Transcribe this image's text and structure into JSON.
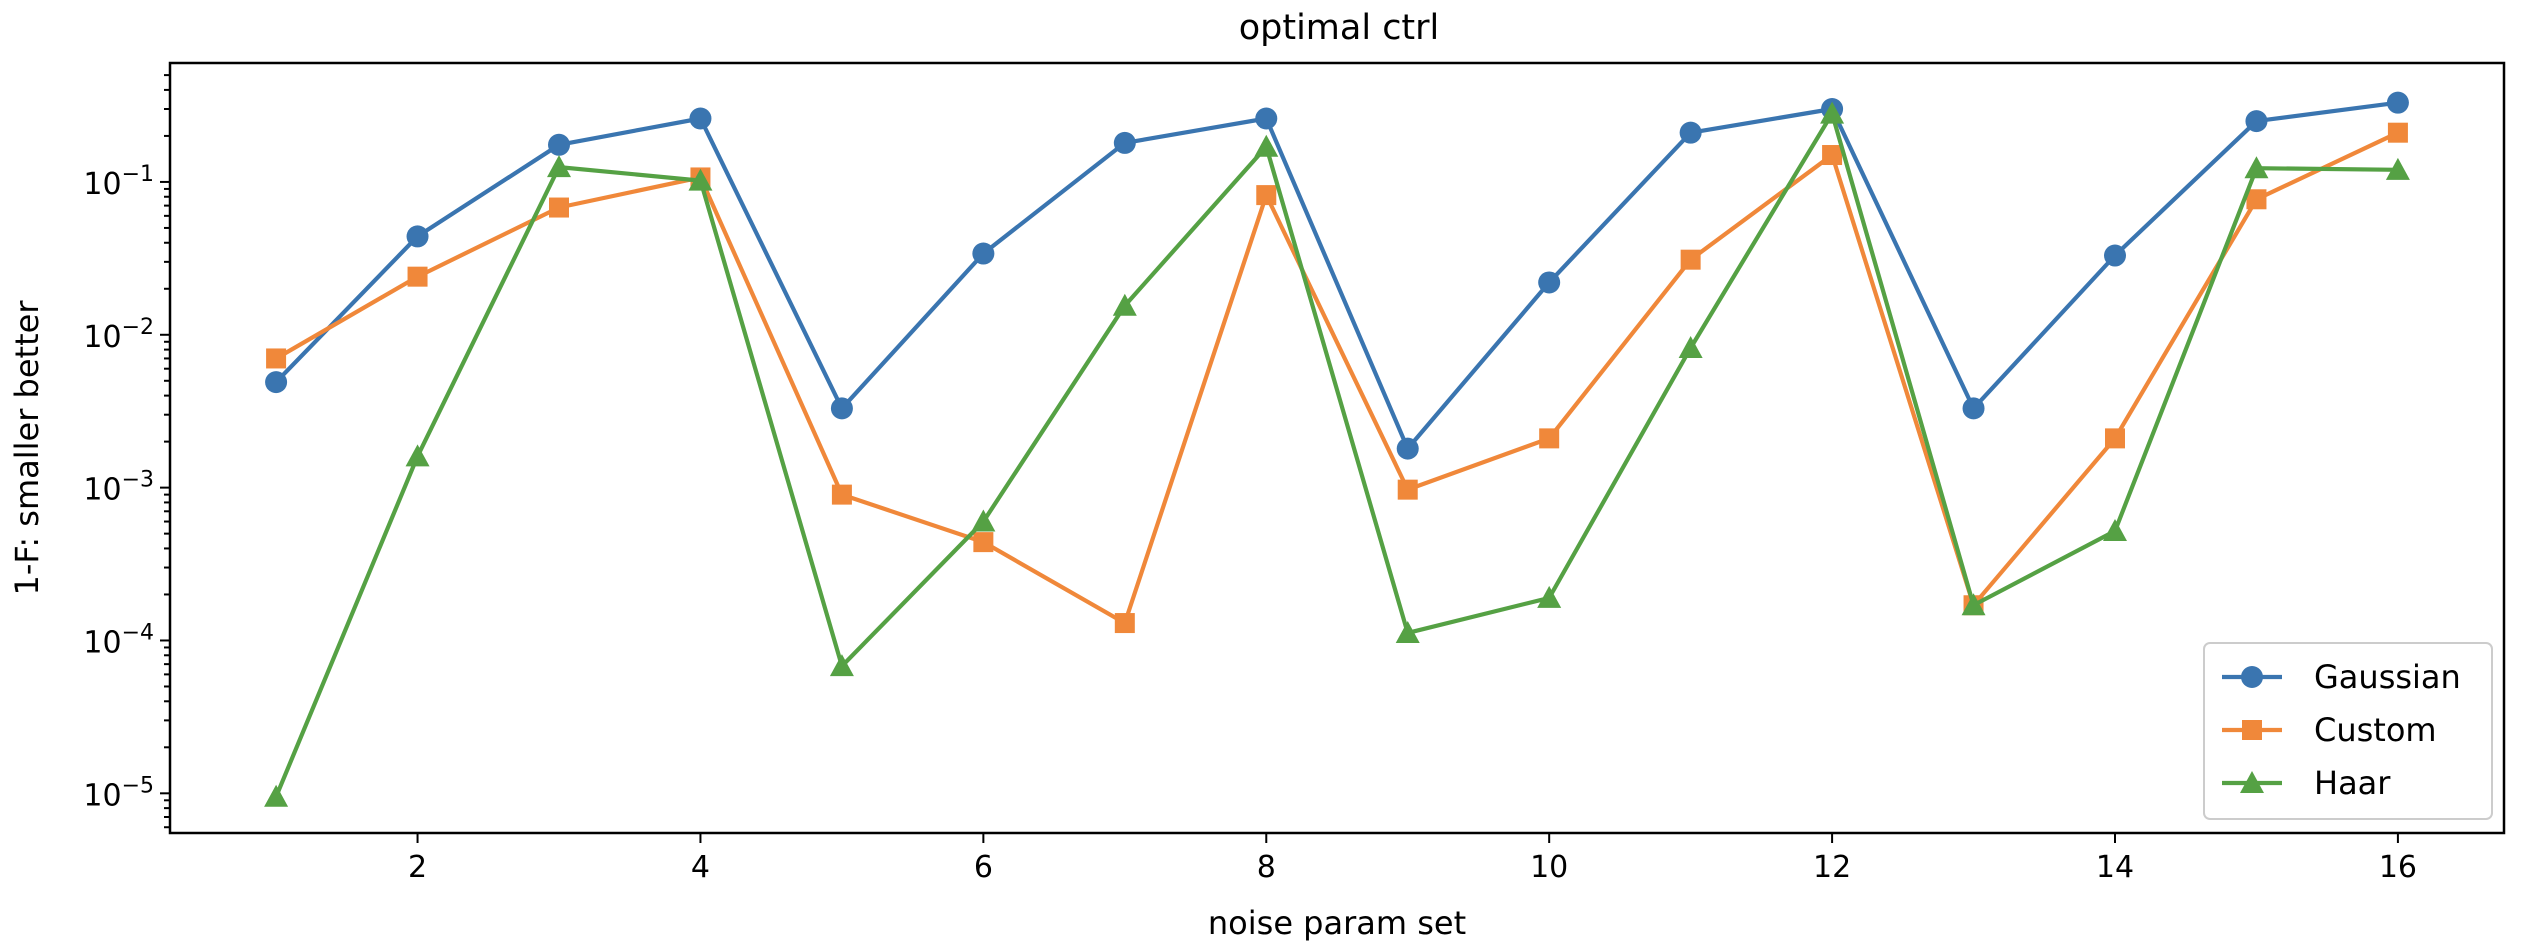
{
  "chart_data": {
    "type": "line",
    "title": "optimal ctrl",
    "xlabel": "noise param set",
    "ylabel": "1-F: smaller better",
    "yscale": "log",
    "xlim": [
      0.25,
      16.75
    ],
    "ylim": [
      5.5e-06,
      0.6
    ],
    "x": [
      1,
      2,
      3,
      4,
      5,
      6,
      7,
      8,
      9,
      10,
      11,
      12,
      13,
      14,
      15,
      16
    ],
    "x_ticks": [
      2,
      4,
      6,
      8,
      10,
      12,
      14,
      16
    ],
    "y_ticks": [
      {
        "value": 1e-05,
        "base": "10",
        "exp": "−5"
      },
      {
        "value": 0.0001,
        "base": "10",
        "exp": "−4"
      },
      {
        "value": 0.001,
        "base": "10",
        "exp": "−3"
      },
      {
        "value": 0.01,
        "base": "10",
        "exp": "−2"
      },
      {
        "value": 0.1,
        "base": "10",
        "exp": "−1"
      }
    ],
    "grid": false,
    "legend_position": "lower-right",
    "series": [
      {
        "name": "Gaussian",
        "color": "#3a75b0",
        "marker": "circle",
        "values": [
          0.0049,
          0.044,
          0.175,
          0.26,
          0.0033,
          0.034,
          0.18,
          0.26,
          0.0018,
          0.022,
          0.21,
          0.3,
          0.0033,
          0.033,
          0.25,
          0.33
        ]
      },
      {
        "name": "Custom",
        "color": "#f0883a",
        "marker": "square",
        "values": [
          0.007,
          0.024,
          0.068,
          0.107,
          0.0009,
          0.00044,
          0.00013,
          0.082,
          0.00097,
          0.0021,
          0.031,
          0.15,
          0.00017,
          0.0021,
          0.077,
          0.21
        ]
      },
      {
        "name": "Haar",
        "color": "#55a144",
        "marker": "triangle",
        "values": [
          9.5e-06,
          0.0016,
          0.125,
          0.102,
          6.8e-05,
          0.0006,
          0.0155,
          0.17,
          0.000112,
          0.00019,
          0.0082,
          0.28,
          0.00017,
          0.00052,
          0.123,
          0.12
        ]
      }
    ]
  }
}
